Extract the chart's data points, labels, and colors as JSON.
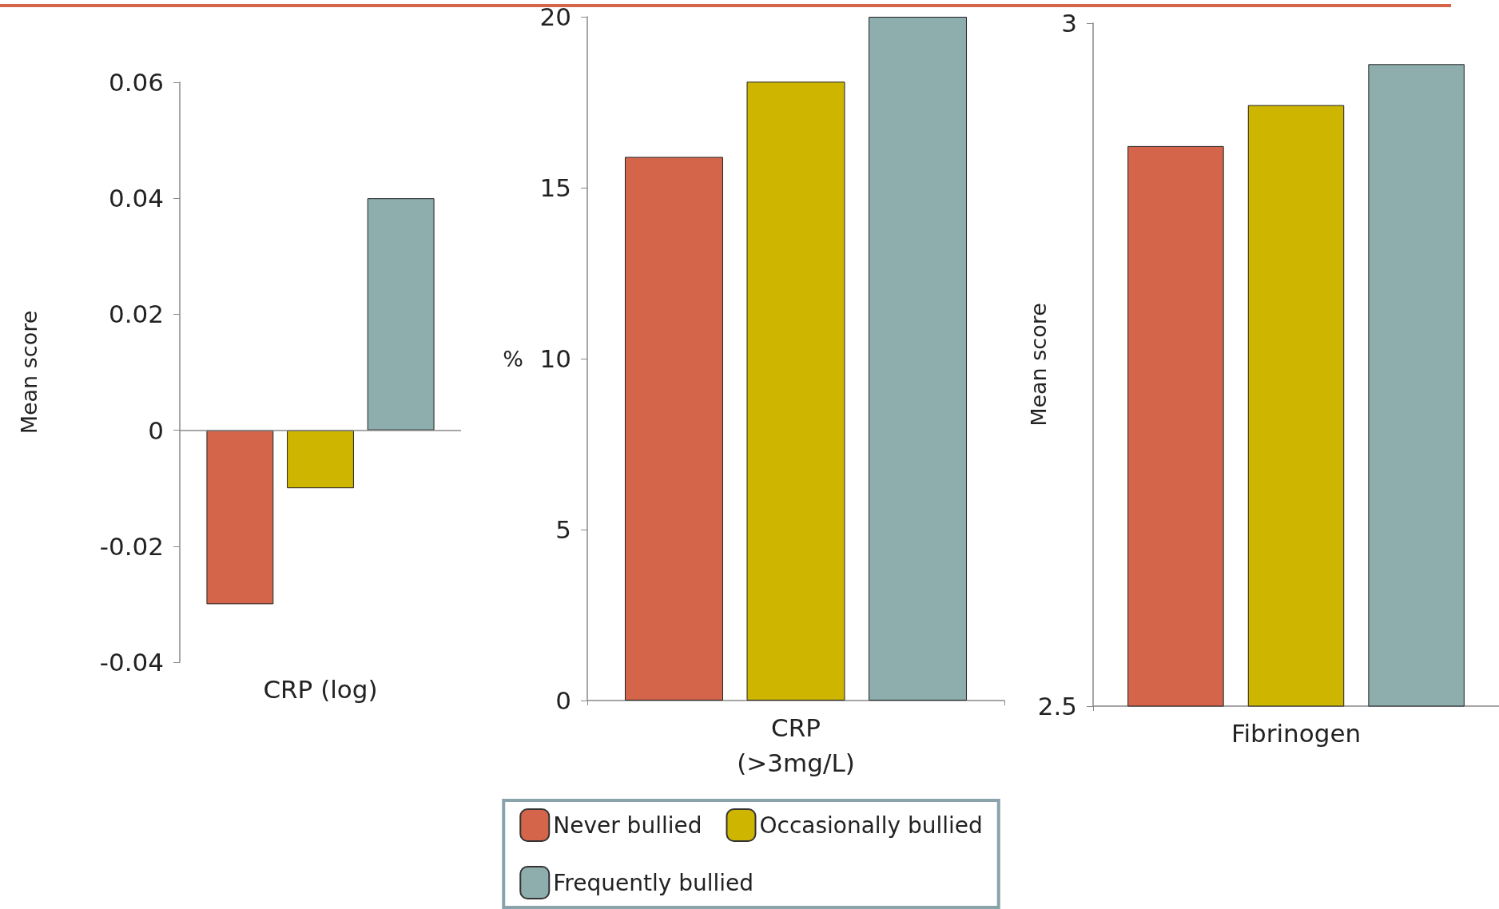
{
  "chart_data": [
    {
      "type": "bar",
      "categories": [
        null
      ],
      "xlabel": "CRP (log)",
      "ylabel": "Mean score",
      "ylim": [
        -0.04,
        0.06
      ],
      "yticks": [
        -0.04,
        -0.02,
        0,
        0.02,
        0.04,
        0.06
      ],
      "grid": false,
      "legend": false,
      "ref_lines": [
        {
          "axis": "y",
          "value": 0,
          "color": "#888888"
        }
      ],
      "series": [
        {
          "color": "#d4654a",
          "values": [
            -0.03
          ]
        },
        {
          "color": "#cdb500",
          "values": [
            -0.01
          ]
        },
        {
          "color": "#8eaeae",
          "values": [
            0.04
          ]
        }
      ]
    },
    {
      "type": "bar",
      "categories": [
        null
      ],
      "xlabel": "CRP\n(>3mg/L)",
      "ylabel": "%",
      "ylim": [
        0,
        20
      ],
      "yticks": [
        0,
        5,
        10,
        15,
        20
      ],
      "grid": false,
      "legend": "bottom",
      "series": [
        {
          "name": "Never bullied",
          "color": "#d4654a",
          "values": [
            15.9
          ]
        },
        {
          "name": "Occasionally bullied",
          "color": "#cdb500",
          "values": [
            18.1
          ]
        },
        {
          "name": "Frequently bullied",
          "color": "#8eaeae",
          "values": [
            20
          ]
        }
      ]
    },
    {
      "type": "bar",
      "categories": [
        null
      ],
      "xlabel": "Fibrinogen",
      "ylabel": "Mean score",
      "ylim": [
        2.5,
        3
      ],
      "yticks": [
        2.5,
        3
      ],
      "grid": false,
      "legend": false,
      "series": [
        {
          "color": "#d4654a",
          "values": [
            2.91
          ]
        },
        {
          "color": "#cdb500",
          "values": [
            2.94
          ]
        },
        {
          "color": "#8eaeae",
          "values": [
            2.97
          ]
        }
      ]
    }
  ]
}
